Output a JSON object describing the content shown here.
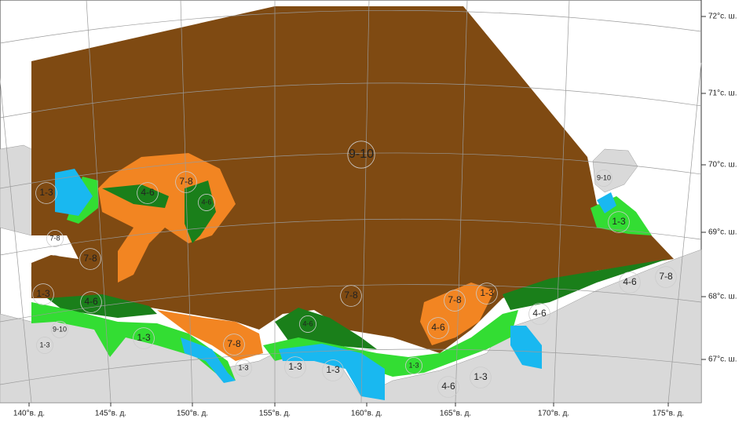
{
  "map": {
    "lon_labels": [
      "140°в. д.",
      "145°в. д.",
      "150°в. д.",
      "155°в. д.",
      "160°в. д.",
      "165°в. д.",
      "170°в. д.",
      "175°в. д."
    ],
    "lat_labels": [
      "72°с. ш.",
      "71°с. ш.",
      "70°с. ш.",
      "69°с. ш.",
      "68°с. ш.",
      "67°с. ш."
    ],
    "zone_labels": [
      "9-10",
      "7-8",
      "4-6",
      "4-6",
      "1-3",
      "7-8",
      "7-8",
      "1-3",
      "4-6",
      "9-10",
      "1-3",
      "1-3",
      "7-8",
      "1-3",
      "1-3",
      "1-3",
      "4-6",
      "7-8",
      "7-8",
      "1-3",
      "4-6",
      "1-3",
      "4-6",
      "1-3",
      "4-6",
      "9-10",
      "1-3",
      "4-6",
      "7-8"
    ]
  }
}
